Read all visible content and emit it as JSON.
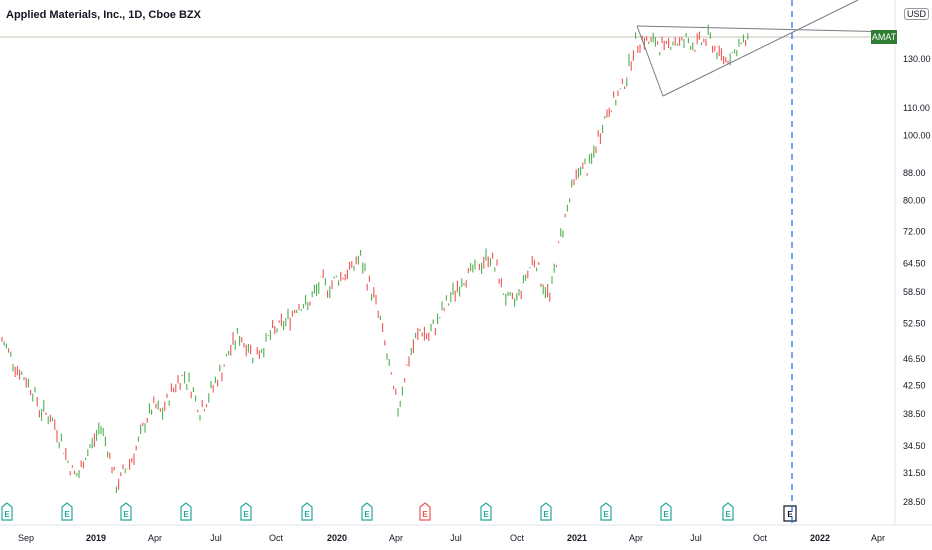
{
  "header": {
    "title": "Applied Materials, Inc., 1D, Cboe BZX",
    "currency": "USD",
    "ticker_badge": "AMAT"
  },
  "colors": {
    "up": "#26a69a",
    "up_candle": "#4caf50",
    "down": "#ef5350",
    "accent_badge": "#2e7d32",
    "grid_line": "#d1d4dc",
    "trendline": "#787b86",
    "vline": "#2962ff"
  },
  "chart_data": {
    "type": "line",
    "symbol": "AMAT",
    "price_scale": "log",
    "y_ticks": [
      "28.50",
      "31.50",
      "34.50",
      "38.50",
      "42.50",
      "46.50",
      "52.50",
      "58.50",
      "64.50",
      "72.00",
      "80.00",
      "88.00",
      "100.00",
      "110.00",
      "130.00"
    ],
    "x_ticks": [
      "Sep",
      "2019",
      "Apr",
      "Jul",
      "Oct",
      "2020",
      "Apr",
      "Jul",
      "Oct",
      "2021",
      "Apr",
      "Jul",
      "Oct",
      "2022",
      "Apr"
    ],
    "x_ticks_bold": [
      "2019",
      "2020",
      "2021",
      "2022"
    ],
    "last_price_label": "AMAT",
    "series": [
      {
        "points": [
          [
            0,
            49.5
          ],
          [
            1,
            47.5
          ],
          [
            2,
            45.0
          ],
          [
            3,
            43.5
          ],
          [
            4,
            42.0
          ],
          [
            5,
            39.0
          ],
          [
            6,
            38.5
          ],
          [
            7,
            37.0
          ],
          [
            8,
            34.5
          ],
          [
            9,
            32.0
          ],
          [
            10,
            31.0
          ],
          [
            11,
            33.5
          ],
          [
            12,
            35.0
          ],
          [
            13,
            37.0
          ],
          [
            14,
            34.0
          ],
          [
            15,
            30.0
          ],
          [
            16,
            31.5
          ],
          [
            17,
            33.0
          ],
          [
            18,
            35.0
          ],
          [
            19,
            38.0
          ],
          [
            20,
            39.5
          ],
          [
            21,
            38.5
          ],
          [
            22,
            41.0
          ],
          [
            23,
            43.0
          ],
          [
            24,
            44.0
          ],
          [
            25,
            42.0
          ],
          [
            26,
            39.0
          ],
          [
            27,
            40.5
          ],
          [
            28,
            43.0
          ],
          [
            29,
            45.0
          ],
          [
            30,
            48.0
          ],
          [
            31,
            50.5
          ],
          [
            32,
            49.0
          ],
          [
            33,
            47.5
          ],
          [
            34,
            48.0
          ],
          [
            35,
            50.0
          ],
          [
            36,
            51.5
          ],
          [
            37,
            52.5
          ],
          [
            38,
            54.0
          ],
          [
            39,
            56.5
          ],
          [
            40,
            55.5
          ],
          [
            41,
            58.0
          ],
          [
            42,
            60.5
          ],
          [
            43,
            59.5
          ],
          [
            44,
            61.5
          ],
          [
            45,
            62.0
          ],
          [
            46,
            63.5
          ],
          [
            47,
            66.0
          ],
          [
            48,
            61.0
          ],
          [
            49,
            57.0
          ],
          [
            50,
            51.0
          ],
          [
            51,
            44.0
          ],
          [
            52,
            39.0
          ],
          [
            53,
            44.5
          ],
          [
            54,
            48.5
          ],
          [
            55,
            51.5
          ],
          [
            56,
            50.0
          ],
          [
            57,
            52.5
          ],
          [
            58,
            55.0
          ],
          [
            59,
            57.5
          ],
          [
            60,
            60.0
          ],
          [
            61,
            62.0
          ],
          [
            62,
            63.0
          ],
          [
            63,
            64.5
          ],
          [
            64,
            66.5
          ],
          [
            65,
            63.0
          ],
          [
            66,
            58.0
          ],
          [
            67,
            56.0
          ],
          [
            68,
            58.5
          ],
          [
            69,
            62.5
          ],
          [
            70,
            66.0
          ],
          [
            71,
            60.0
          ],
          [
            72,
            57.5
          ],
          [
            73,
            67.0
          ],
          [
            74,
            76.0
          ],
          [
            75,
            84.0
          ],
          [
            76,
            90.0
          ],
          [
            77,
            89.0
          ],
          [
            78,
            96.0
          ],
          [
            79,
            105.0
          ],
          [
            80,
            111.0
          ],
          [
            81,
            114.5
          ],
          [
            82,
            122.0
          ],
          [
            83,
            135.0
          ],
          [
            84,
            140.0
          ],
          [
            85,
            137.0
          ],
          [
            86,
            138.0
          ],
          [
            87,
            134.0
          ],
          [
            88,
            139.0
          ],
          [
            89,
            137.0
          ],
          [
            90,
            139.0
          ],
          [
            91,
            136.0
          ],
          [
            92,
            138.0
          ],
          [
            93,
            140.0
          ],
          [
            94,
            132.0
          ],
          [
            95,
            130.0
          ],
          [
            96,
            133.0
          ],
          [
            97,
            136.0
          ],
          [
            98,
            138.5
          ]
        ]
      }
    ],
    "annotations": {
      "triangle_top": "flat resistance line near 138-142",
      "triangle_bottom": "rising support line from Apr 2021 low",
      "vertical_dashed_line": "earnings date marker before 2022",
      "earnings_markers": [
        "E",
        "E",
        "E",
        "E",
        "E",
        "E",
        "E",
        "E",
        "E",
        "E",
        "E",
        "E",
        "E",
        "E"
      ]
    }
  }
}
